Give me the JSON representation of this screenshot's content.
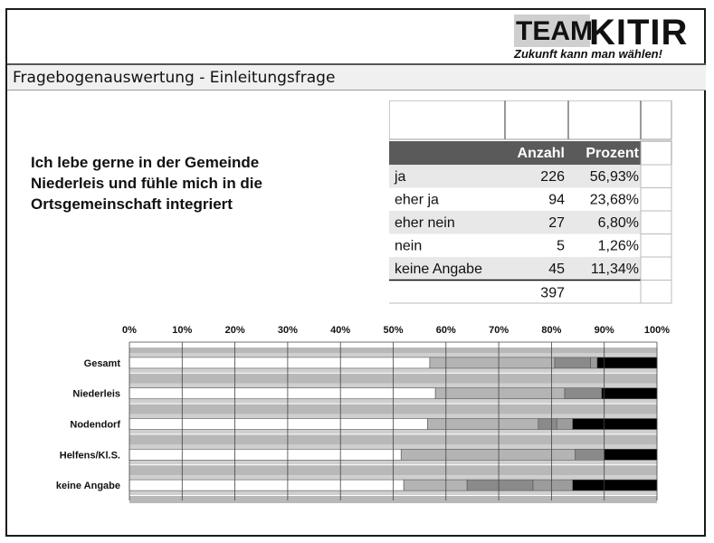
{
  "logo": {
    "team": "TEAM",
    "kitir": "KITIR",
    "slogan": "Zukunft kann man wählen!"
  },
  "title": "Fragebogenauswertung - Einleitungsfrage",
  "question": {
    "line1": "Ich lebe gerne in der Gemeinde",
    "line2": "Niederleis und fühle mich in die",
    "line3": "Ortsgemeinschaft integriert"
  },
  "table": {
    "headers": [
      "",
      "Anzahl",
      "Prozent"
    ],
    "rows": [
      {
        "label": "ja",
        "count": "226",
        "percent": "56,93%"
      },
      {
        "label": "eher ja",
        "count": "94",
        "percent": "23,68%"
      },
      {
        "label": "eher nein",
        "count": "27",
        "percent": "6,80%"
      },
      {
        "label": "nein",
        "count": "5",
        "percent": "1,26%"
      },
      {
        "label": "keine Angabe",
        "count": "45",
        "percent": "11,34%"
      }
    ],
    "total": "397"
  },
  "chart_data": {
    "type": "bar",
    "orientation": "horizontal",
    "stacked": true,
    "categories": [
      "Gesamt",
      "Niederleis",
      "Nodendorf",
      "Helfens/Kl.S.",
      "keine Angabe"
    ],
    "x_ticks": [
      "0%",
      "10%",
      "20%",
      "30%",
      "40%",
      "50%",
      "60%",
      "70%",
      "80%",
      "90%",
      "100%"
    ],
    "xlim": [
      0,
      100
    ],
    "series": [
      {
        "values": [
          56.93,
          58.0,
          56.5,
          51.5,
          52.0
        ],
        "color": "#ffffff"
      },
      {
        "values": [
          23.68,
          24.5,
          21.0,
          33.0,
          12.0
        ],
        "color": "#b4b4b4"
      },
      {
        "values": [
          6.8,
          7.0,
          3.5,
          5.5,
          12.5
        ],
        "color": "#8a8a8a"
      },
      {
        "values": [
          1.26,
          0.0,
          3.0,
          0.0,
          7.5
        ],
        "color": "#9c9c9c"
      },
      {
        "values": [
          11.34,
          10.5,
          16.0,
          10.0,
          16.0
        ],
        "color": "#000000"
      }
    ],
    "grid": true,
    "colors": {
      "band": "#b8b8b8",
      "grid": "#444444"
    }
  }
}
